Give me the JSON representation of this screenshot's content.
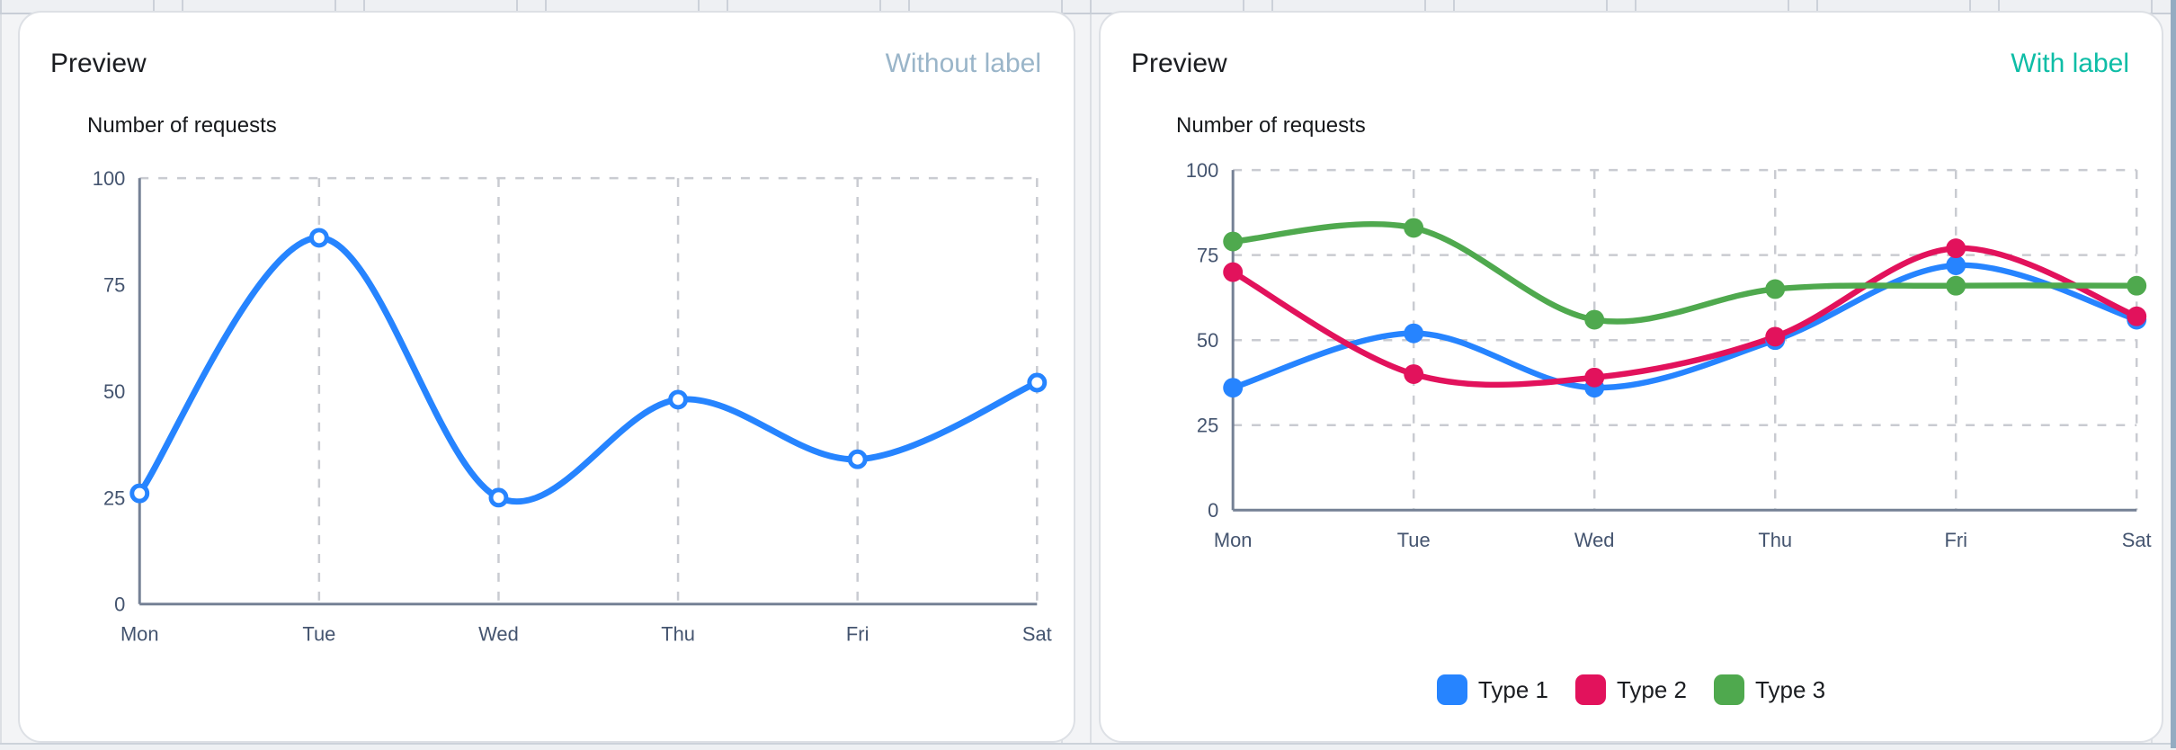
{
  "left_card": {
    "title": "Preview",
    "variant_label": "Without label"
  },
  "right_card": {
    "title": "Preview",
    "variant_label": "With label"
  },
  "colors": {
    "variant_muted": "#9AB5C9",
    "variant_teal": "#0EBDA6",
    "axis_line": "#758195",
    "gridline": "#C9CBD1",
    "tick_label": "#44546F",
    "series_blue": "#2684FF",
    "series_crimson": "#E2125C",
    "series_green": "#4FA94E",
    "side_bar": "#93ABC1"
  },
  "chart_data": [
    {
      "type": "line",
      "title": "Number of requests",
      "categories": [
        "Mon",
        "Tue",
        "Wed",
        "Thu",
        "Fri",
        "Sat"
      ],
      "series": [
        {
          "name": "Type 1",
          "color": "#2684FF",
          "values": [
            26,
            86,
            25,
            48,
            34,
            52
          ]
        }
      ],
      "ylim": [
        0,
        100
      ],
      "yticks": [
        0,
        25,
        50,
        75,
        100
      ],
      "grid": {
        "vertical": true,
        "horizontal_lines": [
          100
        ]
      },
      "curve": "smooth",
      "markers": "hollow",
      "legend": false
    },
    {
      "type": "line",
      "title": "Number of requests",
      "categories": [
        "Mon",
        "Tue",
        "Wed",
        "Thu",
        "Fri",
        "Sat"
      ],
      "series": [
        {
          "name": "Type 1",
          "color": "#2684FF",
          "values": [
            36,
            52,
            36,
            50,
            72,
            56
          ]
        },
        {
          "name": "Type 2",
          "color": "#E2125C",
          "values": [
            70,
            40,
            39,
            51,
            77,
            57
          ]
        },
        {
          "name": "Type 3",
          "color": "#4FA94E",
          "values": [
            79,
            83,
            56,
            65,
            66,
            66
          ]
        }
      ],
      "ylim": [
        0,
        100
      ],
      "yticks": [
        0,
        25,
        50,
        75,
        100
      ],
      "grid": {
        "vertical": true,
        "horizontal_lines": [
          25,
          50,
          75,
          100
        ]
      },
      "curve": "smooth",
      "markers": "filled",
      "legend": true,
      "legend_position": "bottom"
    }
  ]
}
